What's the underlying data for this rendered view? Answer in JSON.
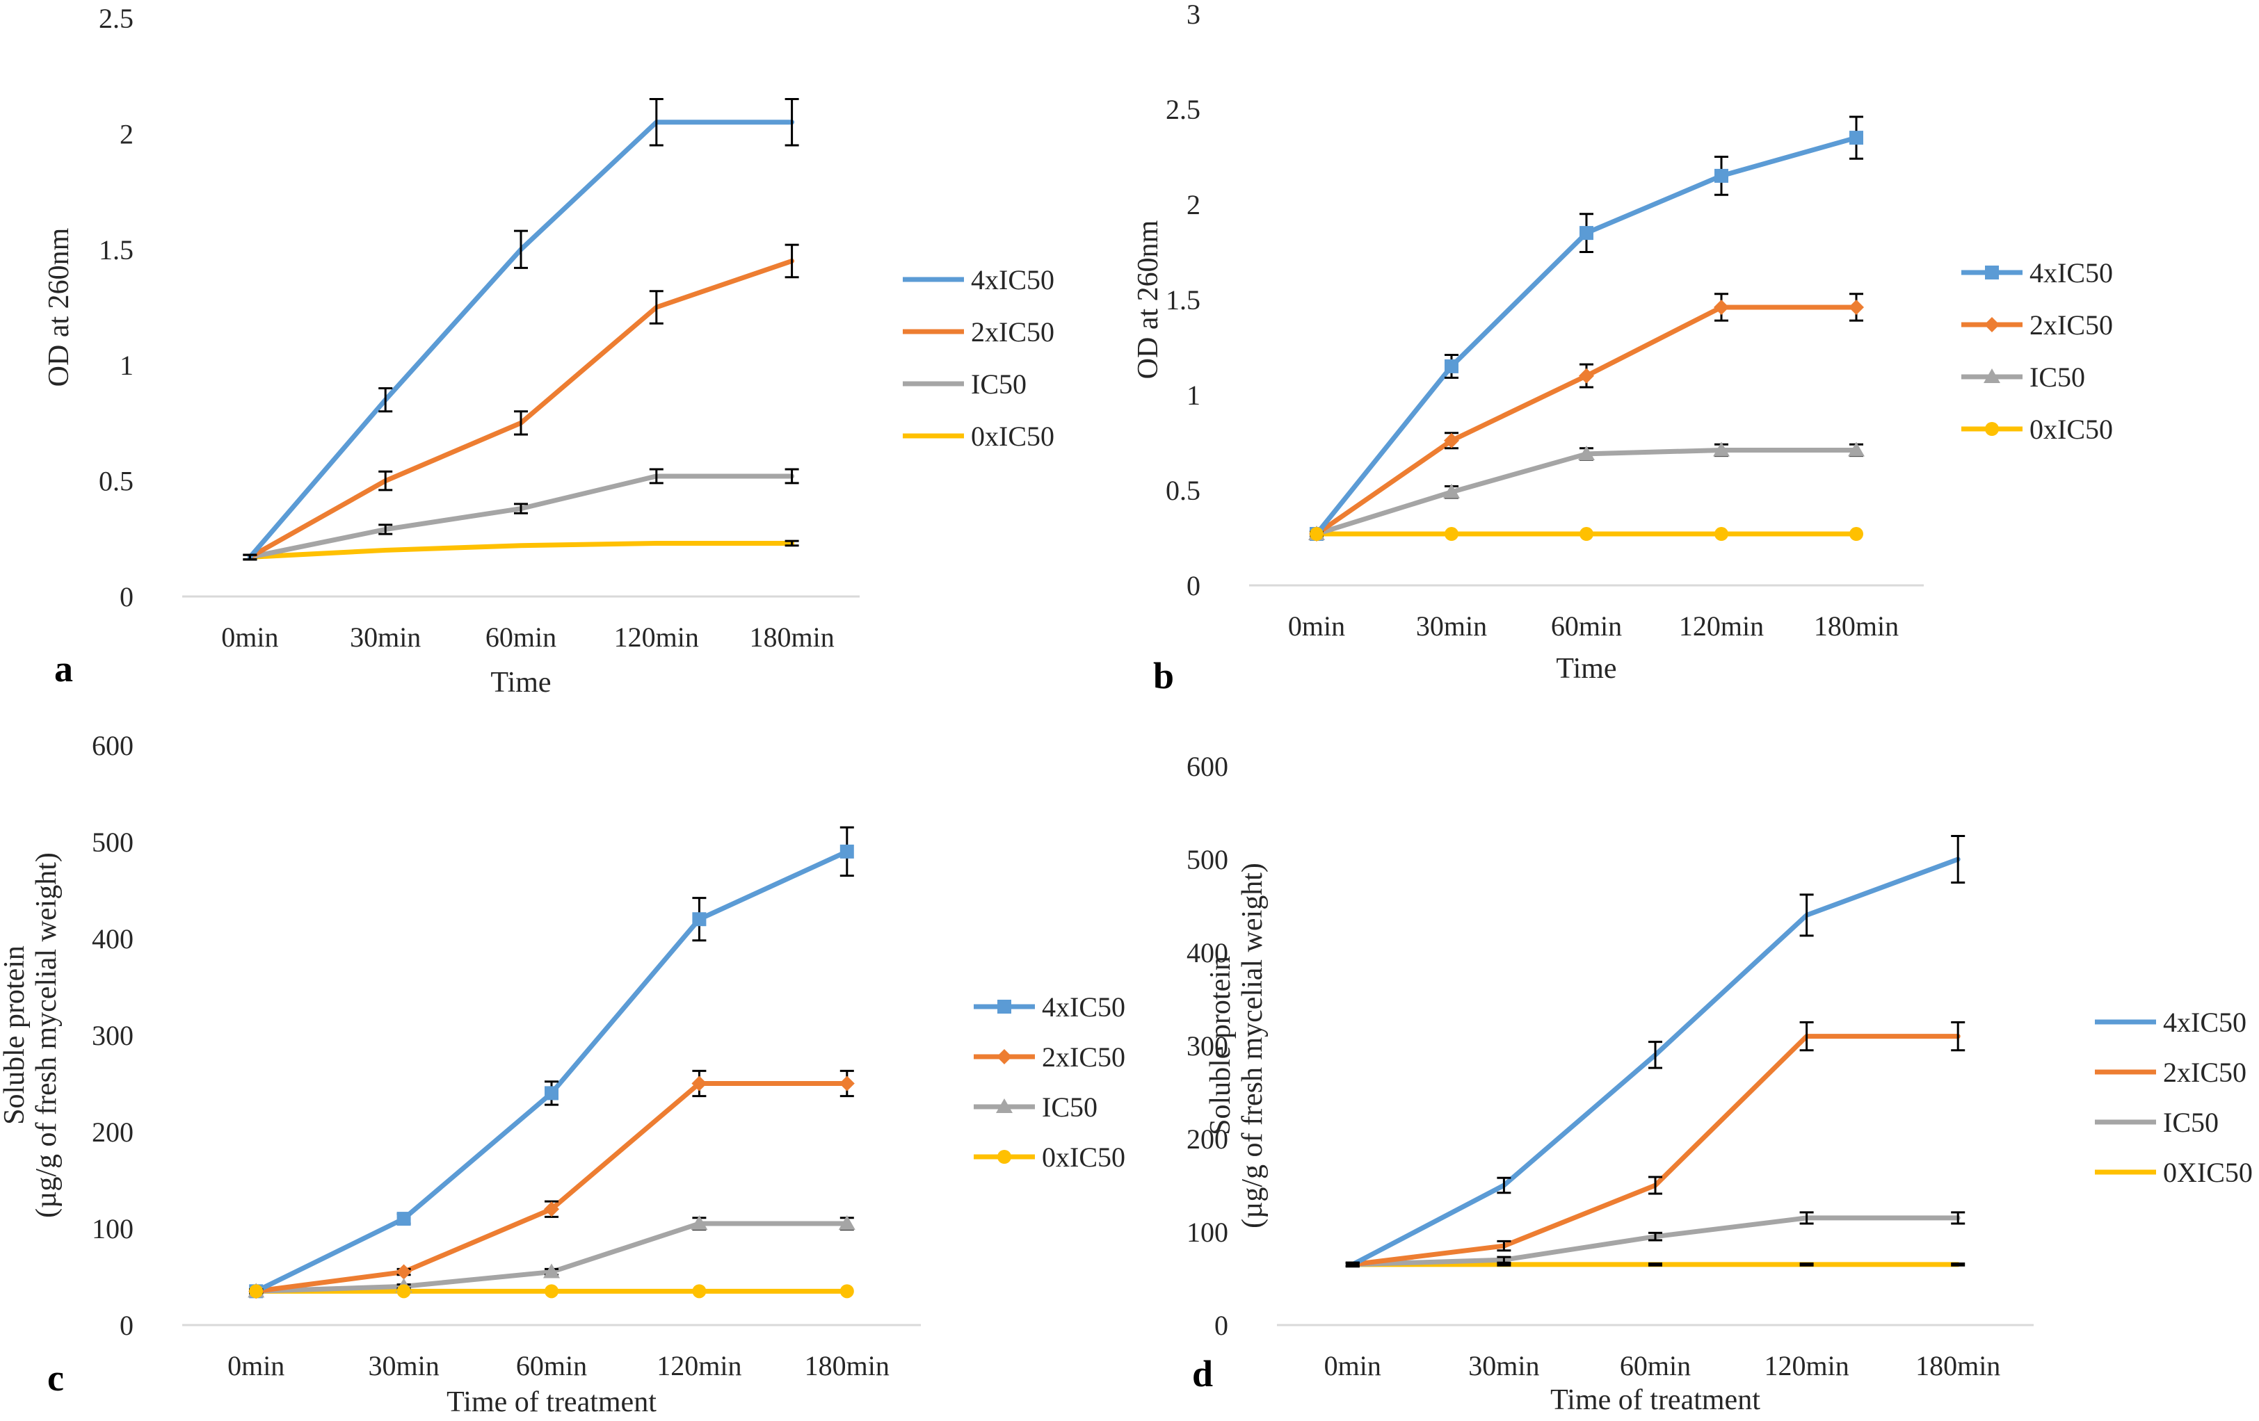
{
  "figure": {
    "panels": [
      {
        "letter": "a",
        "legend_markers": false
      },
      {
        "letter": "b",
        "legend_markers": true
      },
      {
        "letter": "c",
        "legend_markers": true
      },
      {
        "letter": "d",
        "legend_markers": false
      }
    ]
  },
  "chart_data": [
    {
      "type": "line",
      "panel": "a",
      "title": "",
      "xlabel": "Time",
      "ylabel": "OD at 260nm",
      "categories": [
        "0min",
        "30min",
        "60min",
        "120min",
        "180min"
      ],
      "ylim": [
        0,
        2.5
      ],
      "yticks": [
        "0",
        "0.5",
        "1",
        "1.5",
        "2",
        "2.5"
      ],
      "markers": false,
      "series": [
        {
          "name": "4xIC50",
          "color": "#5B9BD5",
          "values": [
            0.17,
            0.85,
            1.5,
            2.05,
            2.05
          ],
          "errors": [
            0.01,
            0.05,
            0.08,
            0.1,
            0.1
          ]
        },
        {
          "name": "2xIC50",
          "color": "#ED7D31",
          "values": [
            0.17,
            0.5,
            0.75,
            1.25,
            1.45
          ],
          "errors": [
            0.01,
            0.04,
            0.05,
            0.07,
            0.07
          ]
        },
        {
          "name": "IC50",
          "color": "#A5A5A5",
          "values": [
            0.17,
            0.29,
            0.38,
            0.52,
            0.52
          ],
          "errors": [
            0.01,
            0.02,
            0.02,
            0.03,
            0.03
          ]
        },
        {
          "name": "0xIC50",
          "color": "#FFC000",
          "values": [
            0.17,
            0.2,
            0.22,
            0.23,
            0.23
          ],
          "errors": [
            0.0,
            0.0,
            0.0,
            0.0,
            0.01
          ]
        }
      ]
    },
    {
      "type": "line",
      "panel": "b",
      "title": "",
      "xlabel": "Time",
      "ylabel": "OD at 260nm",
      "categories": [
        "0min",
        "30min",
        "60min",
        "120min",
        "180min"
      ],
      "ylim": [
        0,
        3
      ],
      "yticks": [
        "0",
        "0.5",
        "1",
        "1.5",
        "2",
        "2.5",
        "3"
      ],
      "markers": true,
      "series": [
        {
          "name": "4xIC50",
          "color": "#5B9BD5",
          "marker": "square",
          "values": [
            0.27,
            1.15,
            1.85,
            2.15,
            2.35
          ],
          "errors": [
            0.01,
            0.06,
            0.1,
            0.1,
            0.11
          ]
        },
        {
          "name": "2xIC50",
          "color": "#ED7D31",
          "marker": "diamond",
          "values": [
            0.27,
            0.76,
            1.1,
            1.46,
            1.46
          ],
          "errors": [
            0.01,
            0.04,
            0.06,
            0.07,
            0.07
          ]
        },
        {
          "name": "IC50",
          "color": "#A5A5A5",
          "marker": "triangle",
          "values": [
            0.27,
            0.49,
            0.69,
            0.71,
            0.71
          ],
          "errors": [
            0.01,
            0.03,
            0.03,
            0.03,
            0.03
          ]
        },
        {
          "name": "0xIC50",
          "color": "#FFC000",
          "marker": "circle",
          "values": [
            0.27,
            0.27,
            0.27,
            0.27,
            0.27
          ],
          "errors": [
            0.0,
            0.0,
            0.0,
            0.0,
            0.0
          ]
        }
      ]
    },
    {
      "type": "line",
      "panel": "c",
      "title": "",
      "xlabel": "Time of treatment",
      "ylabel_lines": [
        "Soluble protein",
        "(µg/g of fresh mycelial weight)"
      ],
      "categories": [
        "0min",
        "30min",
        "60min",
        "120min",
        "180min"
      ],
      "ylim": [
        0,
        600
      ],
      "yticks": [
        "0",
        "100",
        "200",
        "300",
        "400",
        "500",
        "600"
      ],
      "markers": true,
      "series": [
        {
          "name": "4xIC50",
          "color": "#5B9BD5",
          "marker": "square",
          "values": [
            35,
            110,
            240,
            420,
            490
          ],
          "errors": [
            2,
            5,
            12,
            22,
            25
          ]
        },
        {
          "name": "2xIC50",
          "color": "#ED7D31",
          "marker": "diamond",
          "values": [
            35,
            55,
            120,
            250,
            250
          ],
          "errors": [
            2,
            3,
            8,
            13,
            13
          ]
        },
        {
          "name": "IC50",
          "color": "#A5A5A5",
          "marker": "triangle",
          "values": [
            35,
            40,
            55,
            105,
            105
          ],
          "errors": [
            2,
            2,
            3,
            6,
            6
          ]
        },
        {
          "name": "0xIC50",
          "color": "#FFC000",
          "marker": "circle",
          "values": [
            35,
            35,
            35,
            35,
            35
          ],
          "errors": [
            0,
            0,
            0,
            0,
            0
          ]
        }
      ]
    },
    {
      "type": "line",
      "panel": "d",
      "title": "",
      "xlabel": "Time of treatment",
      "ylabel_lines": [
        "Soluble protein",
        "(µg/g of fresh mycelial weight)"
      ],
      "categories": [
        "0min",
        "30min",
        "60min",
        "120min",
        "180min"
      ],
      "ylim": [
        0,
        600
      ],
      "yticks": [
        "0",
        "100",
        "200",
        "300",
        "400",
        "500",
        "600"
      ],
      "markers": false,
      "series": [
        {
          "name": "4xIC50",
          "color": "#5B9BD5",
          "values": [
            65,
            150,
            290,
            440,
            500
          ],
          "errors": [
            2,
            8,
            14,
            22,
            25
          ]
        },
        {
          "name": "2xIC50",
          "color": "#ED7D31",
          "values": [
            65,
            85,
            150,
            310,
            310
          ],
          "errors": [
            2,
            5,
            9,
            15,
            15
          ]
        },
        {
          "name": "IC50",
          "color": "#A5A5A5",
          "values": [
            65,
            70,
            95,
            115,
            115
          ],
          "errors": [
            2,
            3,
            4,
            6,
            6
          ]
        },
        {
          "name": "0XIC50",
          "color": "#FFC000",
          "values": [
            65,
            65,
            65,
            65,
            65
          ],
          "errors": [
            1,
            1,
            1,
            1,
            1
          ]
        }
      ]
    }
  ]
}
